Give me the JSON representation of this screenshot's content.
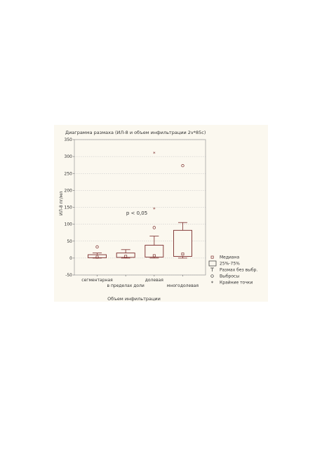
{
  "chart_data": {
    "type": "boxplot",
    "title": "Диаграмма размаха (ИЛ-8 и объем инфильтрации 2v*85c)",
    "xlabel": "Объем инфильтрации",
    "ylabel": "ИЛ-8 пг/мл",
    "ylim": [
      -50,
      350
    ],
    "yticks": [
      -50,
      0,
      50,
      100,
      150,
      200,
      250,
      300,
      350
    ],
    "grid": true,
    "categories": [
      "сегментарная",
      "в пределах доли",
      "долевая",
      "многодолевая"
    ],
    "boxes": [
      {
        "category": "сегментарная",
        "median": 3,
        "q1": 1,
        "q3": 10,
        "whisker_low": 0,
        "whisker_high": 15,
        "outliers": [
          33
        ],
        "extremes": []
      },
      {
        "category": "в пределах доли",
        "median": 5,
        "q1": 2,
        "q3": 15,
        "whisker_low": 0,
        "whisker_high": 25,
        "outliers": [],
        "extremes": []
      },
      {
        "category": "долевая",
        "median": 7,
        "q1": 3,
        "q3": 38,
        "whisker_low": 0,
        "whisker_high": 65,
        "outliers": [
          90
        ],
        "extremes": [
          145,
          310
        ]
      },
      {
        "category": "многодолевая",
        "median": 12,
        "q1": 5,
        "q3": 82,
        "whisker_low": 0,
        "whisker_high": 105,
        "outliers": [
          273
        ],
        "extremes": []
      }
    ],
    "annotation": "p < 0,05",
    "legend": {
      "position": "bottom-right",
      "items": [
        "Медиана",
        "25%-75%",
        "Размах без выбр.",
        "Выбросы",
        "Крайние точки"
      ]
    },
    "colors": {
      "box": "#7a2a2a",
      "grid": "#c0c0c0",
      "background": "#fbf8ef",
      "text": "#333333"
    }
  }
}
